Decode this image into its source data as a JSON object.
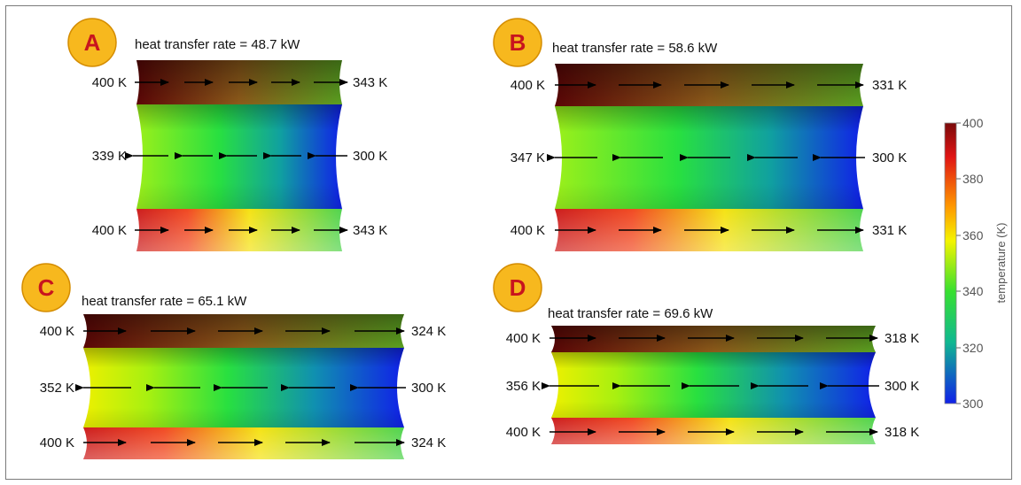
{
  "colors": {
    "badge_fill": "#f7b81e",
    "badge_text": "#c8141e",
    "arrow": "#000000"
  },
  "colorbar": {
    "title": "temperature (K)",
    "ticks": [
      "400",
      "380",
      "360",
      "340",
      "320",
      "300"
    ],
    "range": [
      300,
      400
    ]
  },
  "panels": [
    {
      "id": "A",
      "badge": "A",
      "rate_text": "heat transfer rate = 48.7 kW",
      "top": {
        "in": "400 K",
        "out": "343 K"
      },
      "mid": {
        "in": "300 K",
        "out": "339 K"
      },
      "bot": {
        "in": "400 K",
        "out": "343 K"
      }
    },
    {
      "id": "B",
      "badge": "B",
      "rate_text": "heat transfer rate = 58.6 kW",
      "top": {
        "in": "400 K",
        "out": "331 K"
      },
      "mid": {
        "in": "300 K",
        "out": "347 K"
      },
      "bot": {
        "in": "400 K",
        "out": "331 K"
      }
    },
    {
      "id": "C",
      "badge": "C",
      "rate_text": "heat transfer rate = 65.1 kW",
      "top": {
        "in": "400 K",
        "out": "324 K"
      },
      "mid": {
        "in": "300 K",
        "out": "352 K"
      },
      "bot": {
        "in": "400 K",
        "out": "324 K"
      }
    },
    {
      "id": "D",
      "badge": "D",
      "rate_text": "heat transfer rate = 69.6 kW",
      "top": {
        "in": "400 K",
        "out": "318 K"
      },
      "mid": {
        "in": "300 K",
        "out": "356 K"
      },
      "bot": {
        "in": "400 K",
        "out": "318 K"
      }
    }
  ]
}
